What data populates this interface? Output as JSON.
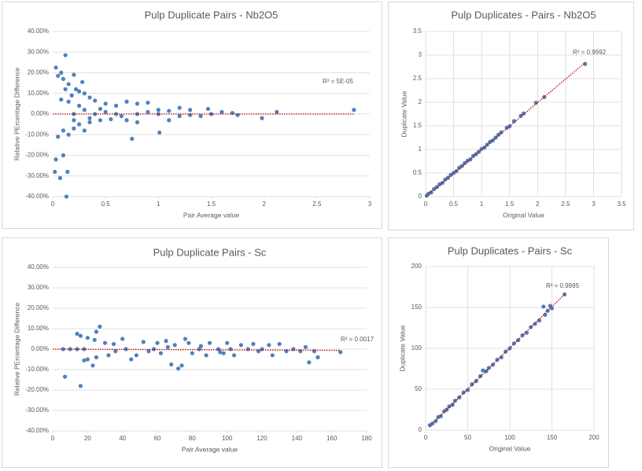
{
  "chart_data": [
    {
      "type": "scatter",
      "title": "Pulp Duplicate Pairs - Nb2O5",
      "x_label": "Pair Average value",
      "y_label": "Relative PErcentage Difference",
      "color": "#4f81bd",
      "grid": "y",
      "annotation": "R² = 5E-05",
      "xlim": [
        0,
        3
      ],
      "xticks": [
        0,
        0.5,
        1,
        1.5,
        2,
        2.5,
        3
      ],
      "ylim": [
        -40,
        40
      ],
      "yticks": [
        {
          "value": -40,
          "label": "-40.00%"
        },
        {
          "value": -30,
          "label": "-30.00%"
        },
        {
          "value": -20,
          "label": "-20.00%"
        },
        {
          "value": -10,
          "label": "-10.00%"
        },
        {
          "value": 0,
          "label": "0.00%"
        },
        {
          "value": 10,
          "label": "10.00%"
        },
        {
          "value": 20,
          "label": "20.00%"
        },
        {
          "value": 30,
          "label": "30.00%"
        },
        {
          "value": 40,
          "label": "40.00%"
        }
      ],
      "x": [
        0.12,
        0.03,
        0.05,
        0.08,
        0.1,
        0.15,
        0.2,
        0.28,
        0.25,
        0.3,
        0.35,
        0.4,
        0.5,
        0.6,
        0.7,
        0.8,
        0.9,
        1.0,
        1.1,
        1.2,
        1.3,
        1.47,
        1.6,
        2.12,
        2.85,
        0.02,
        0.07,
        0.1,
        0.13,
        0.14,
        0.03,
        0.05,
        0.1,
        0.15,
        0.2,
        0.25,
        0.3,
        0.35,
        0.45,
        0.55,
        0.75,
        0.8,
        1.01,
        1.1,
        1.2,
        1.4,
        1.75,
        1.98,
        0.2,
        0.25,
        0.15,
        0.18,
        0.22,
        0.12,
        0.08,
        0.6,
        0.4,
        0.2,
        0.8,
        1.5,
        1.0,
        0.5,
        0.65,
        0.3,
        0.35,
        0.9,
        1.7,
        1.3,
        0.45,
        0.7
      ],
      "values": [
        28.5,
        22.5,
        18.5,
        20,
        17,
        14.5,
        19,
        15.5,
        11,
        10,
        8,
        6.5,
        5,
        4,
        6,
        5,
        5.5,
        2,
        1.5,
        3,
        2,
        2.5,
        1,
        1,
        2,
        -28,
        -31,
        -20,
        -40,
        -28,
        -22,
        -11,
        -8,
        -10,
        -7,
        -5,
        -8,
        -4,
        -3,
        -2.5,
        -12,
        -4,
        -9,
        -3,
        -1,
        -1,
        -0.5,
        -2,
        -3,
        4,
        6,
        9,
        12,
        12,
        7,
        0,
        0,
        0,
        0,
        0,
        0,
        1,
        -1,
        2,
        -2,
        1,
        0.5,
        -0.5,
        2.5,
        -3
      ],
      "trendline": {
        "color": "#c00000",
        "x": [
          0,
          2.85
        ],
        "values": [
          0,
          0
        ]
      }
    },
    {
      "type": "scatter",
      "title": "Pulp Duplicates - Pairs - Nb2O5",
      "x_label": "Original Value",
      "y_label": "Duplicate Value",
      "color": "#4f81bd",
      "grid": "both",
      "annotation": "R² = 0.9992",
      "xlim": [
        0,
        3.5
      ],
      "xticks": [
        0,
        0.5,
        1,
        1.5,
        2,
        2.5,
        3,
        3.5
      ],
      "ylim": [
        0,
        3.5
      ],
      "yticks": [
        0,
        0.5,
        1,
        1.5,
        2,
        2.5,
        3,
        3.5
      ],
      "x": [
        0.02,
        0.05,
        0.1,
        0.15,
        0.2,
        0.25,
        0.3,
        0.35,
        0.4,
        0.45,
        0.5,
        0.55,
        0.6,
        0.65,
        0.7,
        0.75,
        0.8,
        0.85,
        0.9,
        0.95,
        1.0,
        1.05,
        1.1,
        1.15,
        1.2,
        1.25,
        1.3,
        1.35,
        1.45,
        1.5,
        1.58,
        1.7,
        1.75,
        1.97,
        2.12,
        2.85
      ],
      "values": [
        0.02,
        0.06,
        0.09,
        0.16,
        0.2,
        0.26,
        0.29,
        0.36,
        0.4,
        0.46,
        0.5,
        0.54,
        0.61,
        0.65,
        0.71,
        0.76,
        0.79,
        0.86,
        0.9,
        0.95,
        1.01,
        1.04,
        1.1,
        1.16,
        1.19,
        1.25,
        1.31,
        1.36,
        1.46,
        1.49,
        1.6,
        1.71,
        1.76,
        1.99,
        2.11,
        2.81
      ],
      "trendline": {
        "color": "#c00000",
        "x": [
          0,
          2.85
        ],
        "values": [
          0,
          2.84
        ]
      }
    },
    {
      "type": "scatter",
      "title": "Pulp Duplicate Pairs - Sc",
      "x_label": "Pair Average value",
      "y_label": "Relative PErcentage Difference",
      "color": "#4f81bd",
      "grid": "y",
      "annotation": "R² = 0.0017",
      "xlim": [
        0,
        180
      ],
      "xticks": [
        0,
        20,
        40,
        60,
        80,
        100,
        120,
        140,
        160,
        180
      ],
      "ylim": [
        -40,
        40
      ],
      "yticks": [
        {
          "value": -40,
          "label": "-40.00%"
        },
        {
          "value": -30,
          "label": "-30.00%"
        },
        {
          "value": -20,
          "label": "-20.00%"
        },
        {
          "value": -10,
          "label": "-10.00%"
        },
        {
          "value": 0,
          "label": "0.00%"
        },
        {
          "value": 10,
          "label": "10.00%"
        },
        {
          "value": 20,
          "label": "20.00%"
        },
        {
          "value": 30,
          "label": "30.00%"
        },
        {
          "value": 40,
          "label": "40.00%"
        }
      ],
      "x": [
        6,
        10,
        14,
        18,
        7,
        16,
        14,
        16,
        20,
        24,
        27,
        25,
        23,
        18,
        20,
        25,
        30,
        35,
        32,
        40,
        45,
        48,
        52,
        55,
        60,
        62,
        65,
        68,
        70,
        72,
        74,
        76,
        78,
        80,
        85,
        88,
        90,
        95,
        98,
        100,
        104,
        108,
        112,
        115,
        118,
        120,
        124,
        126,
        130,
        134,
        138,
        142,
        145,
        147,
        150,
        152,
        165,
        58,
        42,
        84,
        102,
        36,
        66,
        96
      ],
      "values": [
        0,
        0,
        0,
        0,
        -13.5,
        -18,
        7.5,
        6.5,
        5.5,
        4.5,
        11,
        8.5,
        -8,
        -5.5,
        -5,
        -4,
        3,
        2.5,
        -3,
        5,
        -5,
        -3,
        3.5,
        -1,
        3,
        -2,
        4,
        -7.5,
        2,
        -9.5,
        -8,
        5,
        3,
        -2,
        1.5,
        -3,
        3,
        0,
        -2,
        3,
        -3,
        2,
        0,
        2.5,
        -1,
        0,
        2,
        -3,
        2.5,
        -1,
        0,
        -1,
        1,
        -6.5,
        -1,
        -4,
        -1.5,
        0,
        0,
        0,
        0,
        -1,
        1,
        -1.5
      ],
      "trendline": {
        "color": "#c00000",
        "x": [
          0,
          165
        ],
        "values": [
          0,
          -0.6
        ]
      }
    },
    {
      "type": "scatter",
      "title": "Pulp Duplicates - Pairs - Sc",
      "x_label": "Original Value",
      "y_label": "Duplicate Value",
      "color": "#4f81bd",
      "grid": "both",
      "annotation": "R² = 0.9995",
      "xlim": [
        0,
        200
      ],
      "xticks": [
        0,
        50,
        100,
        150,
        200
      ],
      "ylim": [
        0,
        200
      ],
      "yticks": [
        0,
        50,
        100,
        150,
        200
      ],
      "x": [
        5,
        8,
        12,
        15,
        18,
        22,
        25,
        28,
        32,
        35,
        40,
        45,
        50,
        55,
        60,
        65,
        68,
        72,
        75,
        80,
        85,
        90,
        95,
        100,
        105,
        110,
        115,
        120,
        125,
        130,
        135,
        140,
        142,
        145,
        148,
        150,
        165
      ],
      "values": [
        6,
        8,
        11,
        16,
        17,
        23,
        25,
        29,
        31,
        36,
        40,
        46,
        49,
        56,
        60,
        66,
        73,
        72,
        76,
        80,
        86,
        89,
        96,
        100,
        106,
        110,
        116,
        119,
        126,
        130,
        134,
        151,
        141,
        146,
        152,
        149,
        166
      ],
      "trendline": {
        "color": "#c00000",
        "x": [
          5,
          165
        ],
        "values": [
          5,
          166
        ]
      }
    }
  ]
}
